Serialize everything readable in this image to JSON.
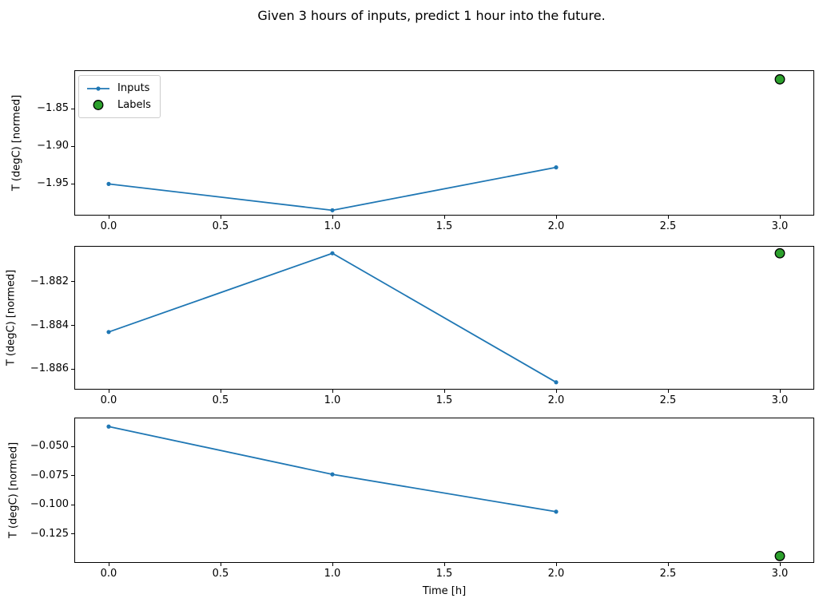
{
  "figure": {
    "title": "Given 3 hours of inputs, predict 1 hour into the future.",
    "xlabel": "Time [h]",
    "colors": {
      "inputs_line": "#1f77b4",
      "labels_fill": "#2ca02c",
      "labels_edge": "#000000",
      "axes_edge": "#000000",
      "legend_edge": "#cccccc"
    },
    "legend": [
      {
        "label": "Inputs",
        "marker": "line-with-dot",
        "color": "#1f77b4"
      },
      {
        "label": "Labels",
        "marker": "filled-circle",
        "color": "#2ca02c",
        "edge": "#000000"
      }
    ]
  },
  "chart_data": [
    {
      "type": "line",
      "title": "",
      "xlabel": "",
      "ylabel": "T (degC) [normed]",
      "grid": false,
      "legend_position": "upper left",
      "xlim": [
        -0.15,
        3.15
      ],
      "ylim": [
        -1.991,
        -1.8
      ],
      "xticks": [
        0.0,
        0.5,
        1.0,
        1.5,
        2.0,
        2.5,
        3.0
      ],
      "xtick_labels": [
        "0.0",
        "0.5",
        "1.0",
        "1.5",
        "2.0",
        "2.5",
        "3.0"
      ],
      "yticks": [
        -1.85,
        -1.9,
        -1.95
      ],
      "ytick_labels": [
        "−1.85",
        "−1.90",
        "−1.95"
      ],
      "series": [
        {
          "name": "Inputs",
          "type": "line",
          "color": "#1f77b4",
          "x": [
            0,
            1,
            2
          ],
          "y": [
            -1.95,
            -1.985,
            -1.928
          ]
        },
        {
          "name": "Labels",
          "type": "scatter",
          "color": "#2ca02c",
          "edgecolor": "#000000",
          "x": [
            3
          ],
          "y": [
            -1.811
          ]
        }
      ]
    },
    {
      "type": "line",
      "title": "",
      "xlabel": "",
      "ylabel": "T (degC) [normed]",
      "grid": false,
      "legend_position": "none",
      "xlim": [
        -0.15,
        3.15
      ],
      "ylim": [
        -1.8869,
        -1.8804
      ],
      "xticks": [
        0.0,
        0.5,
        1.0,
        1.5,
        2.0,
        2.5,
        3.0
      ],
      "xtick_labels": [
        "0.0",
        "0.5",
        "1.0",
        "1.5",
        "2.0",
        "2.5",
        "3.0"
      ],
      "yticks": [
        -1.882,
        -1.884,
        -1.886
      ],
      "ytick_labels": [
        "−1.882",
        "−1.884",
        "−1.886"
      ],
      "series": [
        {
          "name": "Inputs",
          "type": "line",
          "color": "#1f77b4",
          "x": [
            0,
            1,
            2
          ],
          "y": [
            -1.8843,
            -1.8807,
            -1.8866
          ]
        },
        {
          "name": "Labels",
          "type": "scatter",
          "color": "#2ca02c",
          "edgecolor": "#000000",
          "x": [
            3
          ],
          "y": [
            -1.8807
          ]
        }
      ]
    },
    {
      "type": "line",
      "title": "",
      "xlabel": "Time [h]",
      "ylabel": "T (degC) [normed]",
      "grid": false,
      "legend_position": "none",
      "xlim": [
        -0.15,
        3.15
      ],
      "ylim": [
        -0.1492,
        -0.026
      ],
      "xticks": [
        0.0,
        0.5,
        1.0,
        1.5,
        2.0,
        2.5,
        3.0
      ],
      "xtick_labels": [
        "0.0",
        "0.5",
        "1.0",
        "1.5",
        "2.0",
        "2.5",
        "3.0"
      ],
      "yticks": [
        -0.05,
        -0.075,
        -0.1,
        -0.125
      ],
      "ytick_labels": [
        "−0.050",
        "−0.075",
        "−0.100",
        "−0.125"
      ],
      "series": [
        {
          "name": "Inputs",
          "type": "line",
          "color": "#1f77b4",
          "x": [
            0,
            1,
            2
          ],
          "y": [
            -0.033,
            -0.074,
            -0.106
          ]
        },
        {
          "name": "Labels",
          "type": "scatter",
          "color": "#2ca02c",
          "edgecolor": "#000000",
          "x": [
            3
          ],
          "y": [
            -0.144
          ]
        }
      ]
    }
  ]
}
